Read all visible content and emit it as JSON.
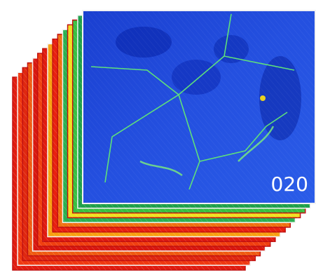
{
  "label": "020"
}
